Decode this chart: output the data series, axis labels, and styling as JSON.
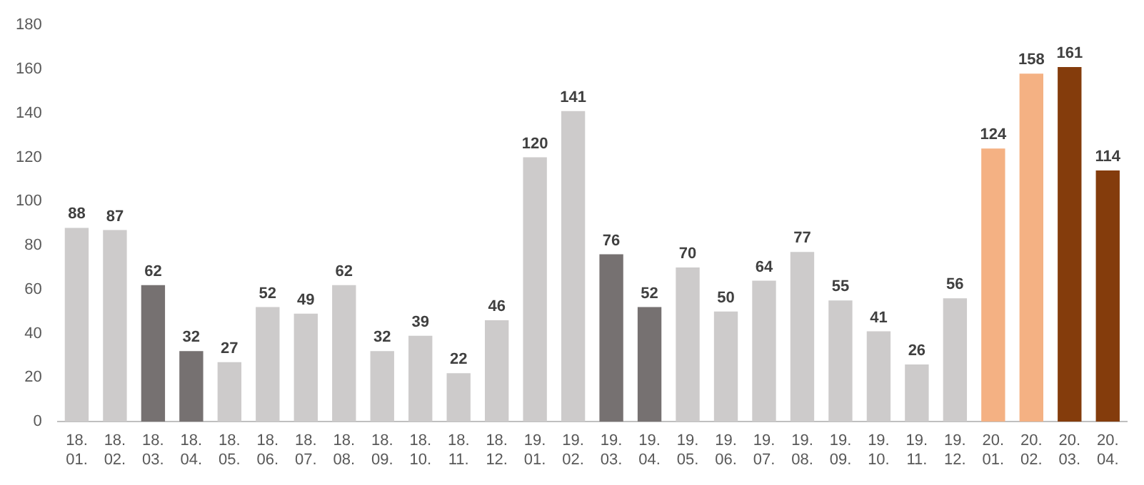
{
  "chart_data": {
    "type": "bar",
    "categories": [
      "18. 01.",
      "18. 02.",
      "18. 03.",
      "18. 04.",
      "18. 05.",
      "18. 06.",
      "18. 07.",
      "18. 08.",
      "18. 09.",
      "18. 10.",
      "18. 11.",
      "18. 12.",
      "19. 01.",
      "19. 02.",
      "19. 03.",
      "19. 04.",
      "19. 05.",
      "19. 06.",
      "19. 07.",
      "19. 08.",
      "19. 09.",
      "19. 10.",
      "19. 11.",
      "19. 12.",
      "20. 01.",
      "20. 02.",
      "20. 03.",
      "20. 04."
    ],
    "values": [
      88,
      87,
      62,
      32,
      27,
      52,
      49,
      62,
      32,
      39,
      22,
      46,
      120,
      141,
      76,
      52,
      70,
      50,
      64,
      77,
      55,
      41,
      26,
      56,
      124,
      158,
      161,
      114
    ],
    "colors": [
      "#cdcbcb",
      "#cdcbcb",
      "#767171",
      "#767171",
      "#cdcbcb",
      "#cdcbcb",
      "#cdcbcb",
      "#cdcbcb",
      "#cdcbcb",
      "#cdcbcb",
      "#cdcbcb",
      "#cdcbcb",
      "#cdcbcb",
      "#cdcbcb",
      "#767171",
      "#767171",
      "#cdcbcb",
      "#cdcbcb",
      "#cdcbcb",
      "#cdcbcb",
      "#cdcbcb",
      "#cdcbcb",
      "#cdcbcb",
      "#cdcbcb",
      "#f4b183",
      "#f4b183",
      "#843c0c",
      "#843c0c"
    ],
    "ylim": [
      0,
      180
    ],
    "yticks": [
      0,
      20,
      40,
      60,
      80,
      100,
      120,
      140,
      160,
      180
    ],
    "grid": false,
    "legend": false,
    "data_labels": true
  }
}
